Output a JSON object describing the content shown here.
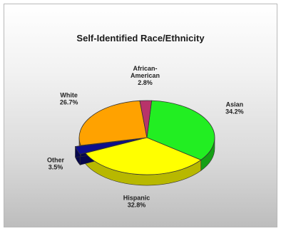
{
  "chart_data": {
    "type": "pie",
    "title": "Self-Identified Race/Ethnicity",
    "slices": [
      {
        "name": "Asian",
        "lines": [
          "Asian"
        ],
        "value": 34.2,
        "label": "34.2%",
        "color": "#22ee22",
        "side": "#15a015"
      },
      {
        "name": "Hispanic",
        "lines": [
          "Hispanic"
        ],
        "value": 32.8,
        "label": "32.8%",
        "color": "#ffff00",
        "side": "#b8b800"
      },
      {
        "name": "Other",
        "lines": [
          "Other"
        ],
        "value": 3.5,
        "label": "3.5%",
        "color": "#0e0e8c",
        "side": "#06064d"
      },
      {
        "name": "White",
        "lines": [
          "White"
        ],
        "value": 26.7,
        "label": "26.7%",
        "color": "#ffa200",
        "side": "#b36d00"
      },
      {
        "name": "African-American",
        "lines": [
          "African-",
          "American"
        ],
        "value": 2.8,
        "label": "2.8%",
        "color": "#b8336a",
        "side": "#7a1f46"
      }
    ],
    "exploded": [
      "Other"
    ]
  }
}
